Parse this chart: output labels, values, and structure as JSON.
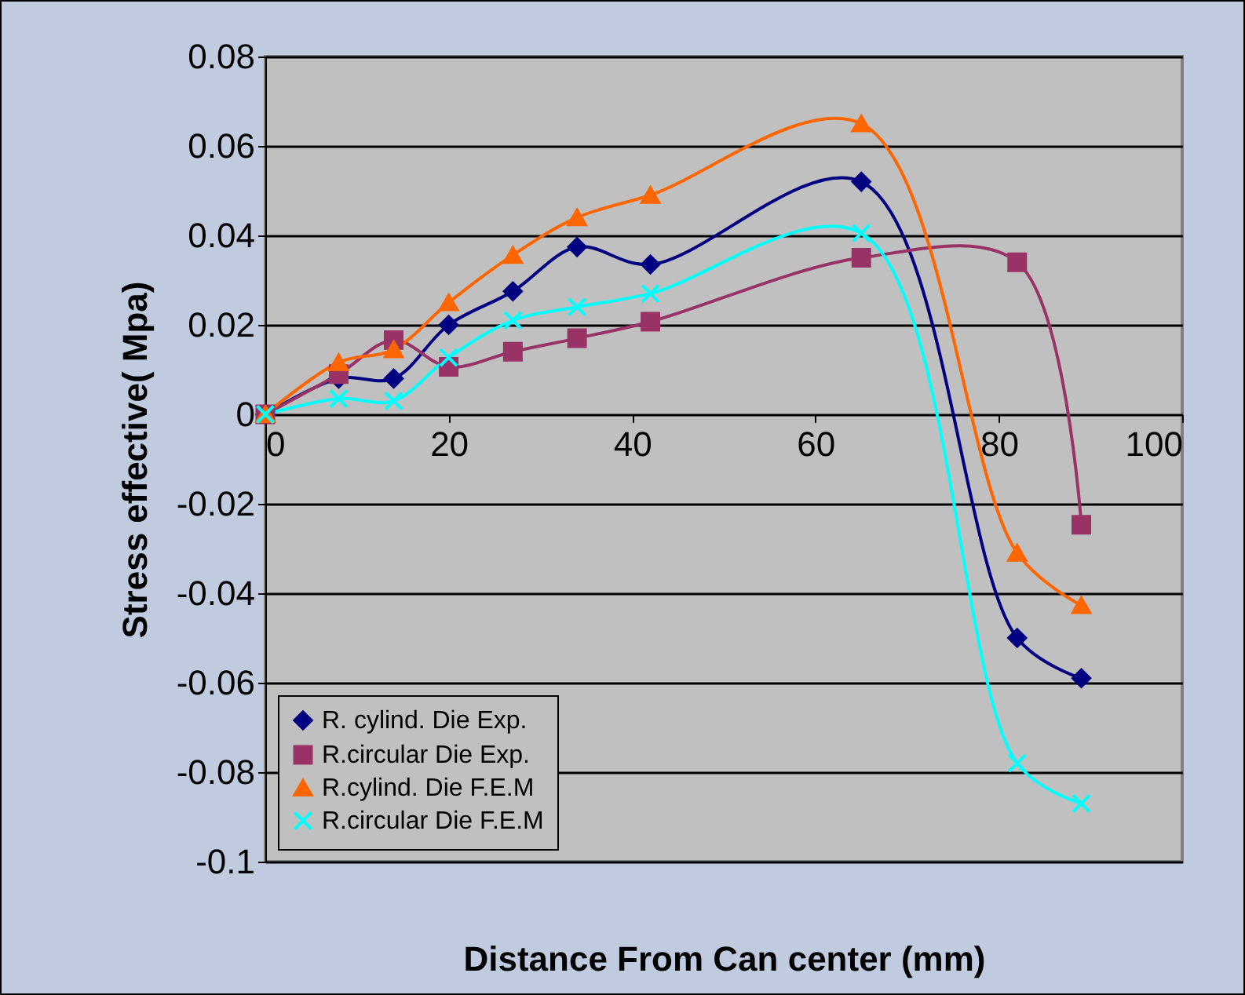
{
  "chart_data": {
    "type": "line",
    "xlabel": "Distance  From Can center (mm)",
    "ylabel": "Stress effective( Mpa)",
    "x": [
      0,
      8,
      14,
      20,
      27,
      34,
      42,
      65,
      82,
      89
    ],
    "series": [
      {
        "name": "R. cylind. Die  Exp.",
        "color": "#000080",
        "marker": "diamond",
        "values": [
          0,
          0.008,
          0.008,
          0.02,
          0.0275,
          0.0374,
          0.0335,
          0.052,
          -0.05,
          -0.059
        ]
      },
      {
        "name": "R.circular Die Exp.",
        "color": "#993366",
        "marker": "square",
        "values": [
          0,
          0.009,
          0.0166,
          0.0106,
          0.014,
          0.017,
          0.0207,
          0.035,
          0.034,
          -0.0247
        ]
      },
      {
        "name": "R.cylind. Die F.E.M",
        "color": "#ff6600",
        "marker": "triangle",
        "values": [
          0,
          0.0116,
          0.0145,
          0.025,
          0.0356,
          0.044,
          0.049,
          0.065,
          -0.031,
          -0.0427
        ]
      },
      {
        "name": "R.circular Die F.E.M",
        "color": "#00ffff",
        "marker": "cross",
        "values": [
          0,
          0.0035,
          0.003,
          0.0127,
          0.021,
          0.024,
          0.027,
          0.0405,
          -0.078,
          -0.087
        ]
      }
    ],
    "xlim": [
      0,
      100
    ],
    "xticks": [
      0,
      20,
      40,
      60,
      80,
      100
    ],
    "ylim": [
      -0.1,
      0.08
    ],
    "yticks": [
      -0.1,
      -0.08,
      -0.06,
      -0.04,
      -0.02,
      0,
      0.02,
      0.04,
      0.06,
      0.08
    ],
    "grid": "y",
    "legend": "bottom left"
  }
}
